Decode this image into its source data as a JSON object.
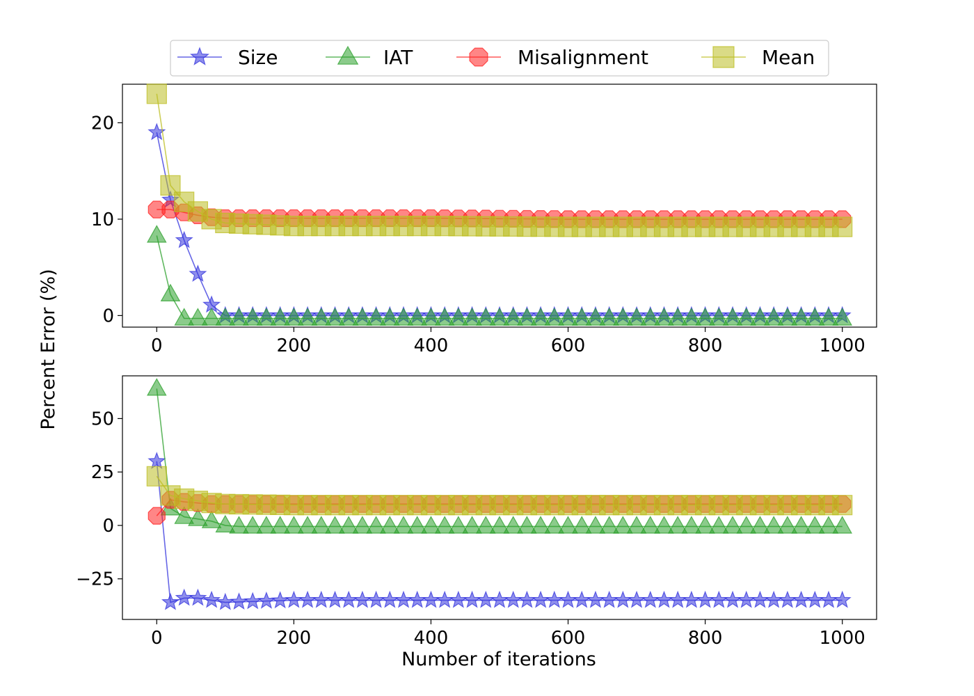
{
  "chart_data": {
    "type": "line",
    "xlabel": "Number of iterations",
    "ylabel": "Percent Error (%)",
    "legend": {
      "placement": "top-center, above plots, single row",
      "entries": [
        "Size",
        "IAT",
        "Misalignment",
        "Mean"
      ]
    },
    "series_style": {
      "Size": {
        "color": "#3333dd",
        "marker": "star"
      },
      "IAT": {
        "color": "#2ca02c",
        "marker": "triangle"
      },
      "Misalignment": {
        "color": "#ff2222",
        "marker": "octagon"
      },
      "Mean": {
        "color": "#bcbd22",
        "marker": "square"
      }
    },
    "grid": false,
    "subplots": [
      {
        "xlim": [
          -50,
          1050
        ],
        "ylim": [
          -1.2,
          24
        ],
        "xticks": [
          0,
          200,
          400,
          600,
          800,
          1000
        ],
        "yticks": [
          0,
          10,
          20
        ],
        "series": [
          {
            "name": "Size",
            "x": [
              0,
              20,
              40,
              60,
              80,
              100,
              200,
              400,
              600,
              800,
              1000
            ],
            "y": [
              19,
              12,
              7.8,
              4.3,
              1.1,
              0,
              0,
              0,
              0,
              0,
              0
            ]
          },
          {
            "name": "IAT",
            "x": [
              0,
              20,
              40,
              60,
              80,
              100,
              200,
              400,
              600,
              800,
              1000
            ],
            "y": [
              8.3,
              2.2,
              -0.3,
              -0.3,
              -0.3,
              -0.3,
              -0.3,
              -0.3,
              -0.3,
              -0.3,
              -0.3
            ]
          },
          {
            "name": "Misalignment",
            "x": [
              0,
              20,
              40,
              60,
              80,
              100,
              200,
              400,
              600,
              800,
              1000
            ],
            "y": [
              11,
              11,
              10.7,
              10.4,
              10.2,
              10.1,
              10.1,
              10.1,
              10.0,
              10.0,
              10.0
            ]
          },
          {
            "name": "Mean",
            "x": [
              0,
              20,
              40,
              60,
              80,
              100,
              200,
              400,
              600,
              800,
              1000
            ],
            "y": [
              23,
              13.5,
              11.8,
              10.8,
              10,
              9.6,
              9.3,
              9.3,
              9.2,
              9.2,
              9.2
            ]
          }
        ]
      },
      {
        "xlim": [
          -50,
          1050
        ],
        "ylim": [
          -44,
          70
        ],
        "xticks": [
          0,
          200,
          400,
          600,
          800,
          1000
        ],
        "yticks": [
          -25,
          0,
          25,
          50
        ],
        "series": [
          {
            "name": "Size",
            "x": [
              0,
              20,
              40,
              60,
              80,
              100,
              200,
              400,
              600,
              800,
              1000
            ],
            "y": [
              30,
              -36,
              -34,
              -34,
              -35,
              -36,
              -35,
              -35,
              -35,
              -35,
              -35
            ]
          },
          {
            "name": "IAT",
            "x": [
              0,
              20,
              40,
              60,
              80,
              100,
              120,
              200,
              400,
              600,
              800,
              1000
            ],
            "y": [
              64,
              8,
              4,
              3,
              2,
              0,
              -0.5,
              -0.5,
              -0.5,
              -0.5,
              -0.5,
              -0.5
            ]
          },
          {
            "name": "Misalignment",
            "x": [
              0,
              20,
              40,
              60,
              80,
              100,
              200,
              400,
              600,
              800,
              1000
            ],
            "y": [
              4.5,
              12,
              11,
              10.5,
              10,
              10,
              10,
              10,
              10,
              10,
              10
            ]
          },
          {
            "name": "Mean",
            "x": [
              0,
              20,
              40,
              60,
              80,
              100,
              200,
              400,
              600,
              800,
              1000
            ],
            "y": [
              23,
              14,
              12.5,
              11.5,
              10.5,
              10,
              9.5,
              9.5,
              9.5,
              9.5,
              9.5
            ]
          }
        ]
      }
    ]
  }
}
